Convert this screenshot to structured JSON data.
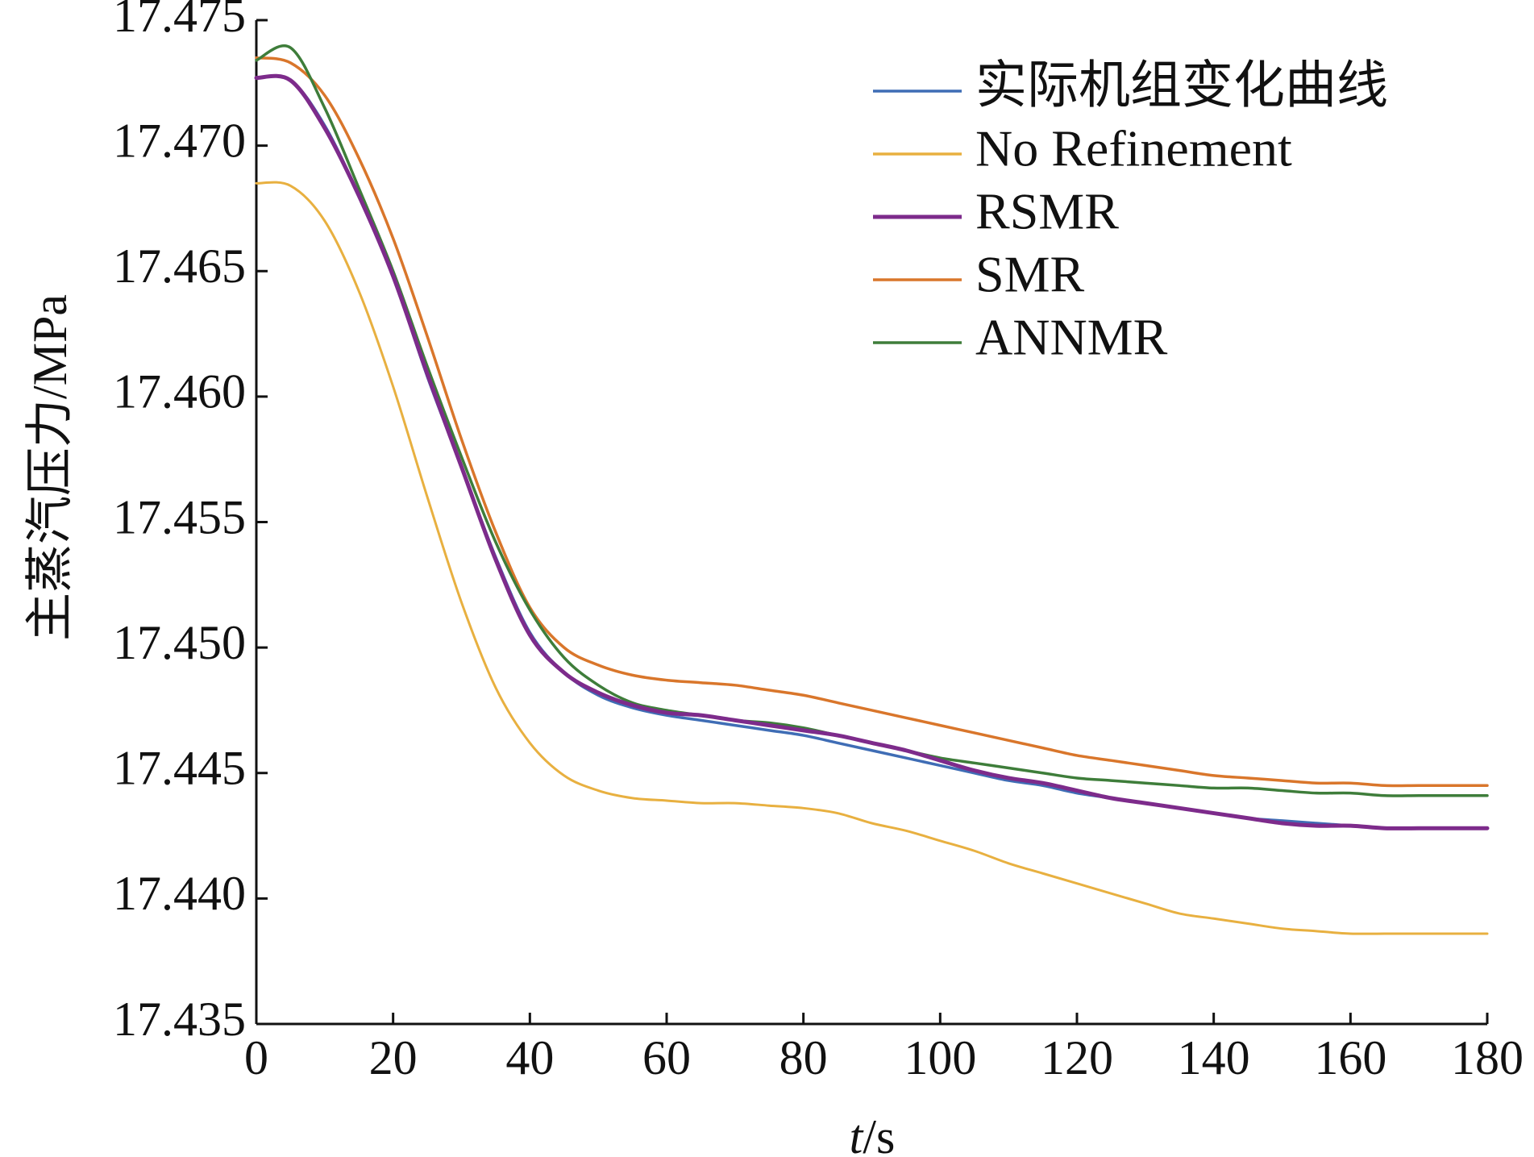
{
  "chart_data": {
    "type": "line",
    "xlabel_italic": "t",
    "xlabel_unit": "/s",
    "ylabel": "主蒸汽压力/MPa",
    "xlim": [
      0,
      180
    ],
    "ylim": [
      17.435,
      17.475
    ],
    "xticks": [
      "0",
      "20",
      "40",
      "60",
      "80",
      "100",
      "120",
      "140",
      "160",
      "180"
    ],
    "yticks": [
      "17.435",
      "17.440",
      "17.445",
      "17.450",
      "17.455",
      "17.460",
      "17.465",
      "17.470",
      "17.475"
    ],
    "grid": false,
    "legend_position": "top-right",
    "series": [
      {
        "name": "实际机组变化曲线",
        "color": "#3f6db5",
        "x": [
          0,
          5,
          10,
          15,
          20,
          25,
          30,
          35,
          40,
          45,
          50,
          55,
          60,
          65,
          70,
          75,
          80,
          85,
          90,
          95,
          100,
          105,
          110,
          115,
          120,
          125,
          130,
          135,
          140,
          145,
          150,
          155,
          160,
          165,
          170,
          175,
          180
        ],
        "y": [
          17.4727,
          17.4726,
          17.4708,
          17.468,
          17.4648,
          17.4608,
          17.4572,
          17.4536,
          17.4506,
          17.449,
          17.4481,
          17.4476,
          17.4473,
          17.4471,
          17.4469,
          17.4467,
          17.4465,
          17.4462,
          17.4459,
          17.4456,
          17.4453,
          17.445,
          17.4447,
          17.4445,
          17.4442,
          17.444,
          17.4438,
          17.4436,
          17.4434,
          17.4432,
          17.4431,
          17.443,
          17.4429,
          17.4428,
          17.4428,
          17.4428,
          17.4428
        ]
      },
      {
        "name": "No Refinement",
        "color": "#e8b040",
        "x": [
          0,
          5,
          10,
          15,
          20,
          25,
          30,
          35,
          40,
          45,
          50,
          55,
          60,
          65,
          70,
          75,
          80,
          85,
          90,
          95,
          100,
          105,
          110,
          115,
          120,
          125,
          130,
          135,
          140,
          145,
          150,
          155,
          160,
          165,
          170,
          175,
          180
        ],
        "y": [
          17.4685,
          17.4684,
          17.467,
          17.4642,
          17.4604,
          17.456,
          17.4518,
          17.4484,
          17.4462,
          17.4449,
          17.4443,
          17.444,
          17.4439,
          17.4438,
          17.4438,
          17.4437,
          17.4436,
          17.4434,
          17.443,
          17.4427,
          17.4423,
          17.4419,
          17.4414,
          17.441,
          17.4406,
          17.4402,
          17.4398,
          17.4394,
          17.4392,
          17.439,
          17.4388,
          17.4387,
          17.4386,
          17.4386,
          17.4386,
          17.4386,
          17.4386
        ]
      },
      {
        "name": "RSMR",
        "color": "#7d2b8b",
        "x": [
          0,
          5,
          10,
          15,
          20,
          25,
          30,
          35,
          40,
          45,
          50,
          55,
          60,
          65,
          70,
          75,
          80,
          85,
          90,
          95,
          100,
          105,
          110,
          115,
          120,
          125,
          130,
          135,
          140,
          145,
          150,
          155,
          160,
          165,
          170,
          175,
          180
        ],
        "y": [
          17.4727,
          17.4726,
          17.4707,
          17.468,
          17.4648,
          17.4609,
          17.4572,
          17.4535,
          17.4505,
          17.449,
          17.4482,
          17.4477,
          17.4474,
          17.4473,
          17.4471,
          17.4469,
          17.4467,
          17.4465,
          17.4462,
          17.4459,
          17.4455,
          17.4451,
          17.4448,
          17.4446,
          17.4443,
          17.444,
          17.4438,
          17.4436,
          17.4434,
          17.4432,
          17.443,
          17.4429,
          17.4429,
          17.4428,
          17.4428,
          17.4428,
          17.4428
        ]
      },
      {
        "name": "SMR",
        "color": "#d9762b",
        "x": [
          0,
          5,
          10,
          15,
          20,
          25,
          30,
          35,
          40,
          45,
          50,
          55,
          60,
          65,
          70,
          75,
          80,
          85,
          90,
          95,
          100,
          105,
          110,
          115,
          120,
          125,
          130,
          135,
          140,
          145,
          150,
          155,
          160,
          165,
          170,
          175,
          180
        ],
        "y": [
          17.4735,
          17.4733,
          17.472,
          17.4695,
          17.4663,
          17.4624,
          17.4583,
          17.4546,
          17.4516,
          17.45,
          17.4493,
          17.4489,
          17.4487,
          17.4486,
          17.4485,
          17.4483,
          17.4481,
          17.4478,
          17.4475,
          17.4472,
          17.4469,
          17.4466,
          17.4463,
          17.446,
          17.4457,
          17.4455,
          17.4453,
          17.4451,
          17.4449,
          17.4448,
          17.4447,
          17.4446,
          17.4446,
          17.4445,
          17.4445,
          17.4445,
          17.4445
        ]
      },
      {
        "name": "ANNMR",
        "color": "#3e7d3a",
        "x": [
          0,
          5,
          10,
          15,
          20,
          25,
          30,
          35,
          40,
          45,
          50,
          55,
          60,
          65,
          70,
          75,
          80,
          85,
          90,
          95,
          100,
          105,
          110,
          115,
          120,
          125,
          130,
          135,
          140,
          145,
          150,
          155,
          160,
          165,
          170,
          175,
          180
        ],
        "y": [
          17.4734,
          17.4739,
          17.4715,
          17.4683,
          17.465,
          17.4612,
          17.4576,
          17.4542,
          17.4515,
          17.4496,
          17.4485,
          17.4478,
          17.4475,
          17.4473,
          17.4471,
          17.447,
          17.4468,
          17.4465,
          17.4462,
          17.4459,
          17.4456,
          17.4454,
          17.4452,
          17.445,
          17.4448,
          17.4447,
          17.4446,
          17.4445,
          17.4444,
          17.4444,
          17.4443,
          17.4442,
          17.4442,
          17.4441,
          17.4441,
          17.4441,
          17.4441
        ]
      }
    ]
  }
}
